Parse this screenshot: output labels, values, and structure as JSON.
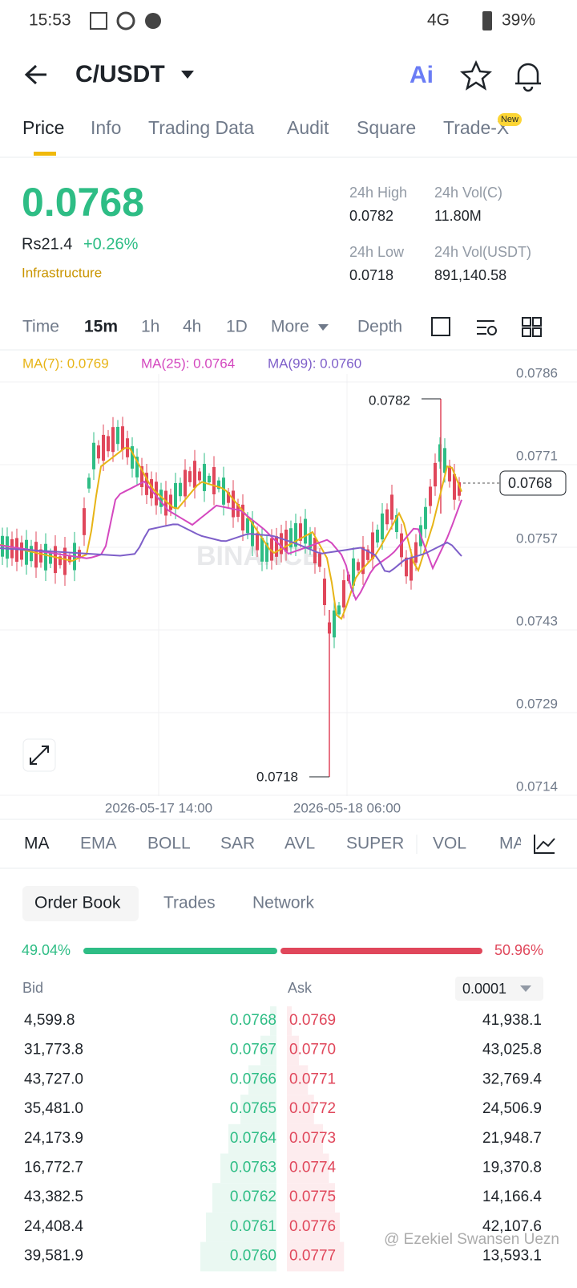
{
  "status": {
    "time": "15:53",
    "network": "4G",
    "battery": "39%"
  },
  "header": {
    "pair": "C/USDT"
  },
  "tabs": {
    "items": [
      "Price",
      "Info",
      "Trading Data",
      "Audit",
      "Square",
      "Trade-X"
    ],
    "badge": "New"
  },
  "price": {
    "last": "0.0768",
    "fiat": "Rs21.4",
    "change": "+0.26%",
    "tag": "Infrastructure"
  },
  "stats": [
    {
      "label": "24h High",
      "value": "0.0782"
    },
    {
      "label": "24h Vol(C)",
      "value": "11.80M"
    },
    {
      "label": "24h Low",
      "value": "0.0718"
    },
    {
      "label": "24h Vol(USDT)",
      "value": "891,140.58"
    }
  ],
  "intervals": [
    "Time",
    "15m",
    "1h",
    "4h",
    "1D",
    "More",
    "Depth"
  ],
  "chart": {
    "ma": [
      "MA(7): 0.0769",
      "MA(25): 0.0764",
      "MA(99): 0.0760"
    ],
    "yticks": [
      "0.0786",
      "0.0771",
      "0.0757",
      "0.0743",
      "0.0729",
      "0.0714"
    ],
    "high": "0.0782",
    "low": "0.0718",
    "current": "0.0768",
    "watermark": "BINANCE",
    "xlabels": [
      "2026-05-17 14:00",
      "2026-05-18 06:00"
    ]
  },
  "indicators": [
    "MA",
    "EMA",
    "BOLL",
    "SAR",
    "AVL",
    "SUPER",
    "VOL",
    "MAC"
  ],
  "orderbook": {
    "tabs": [
      "Order Book",
      "Trades",
      "Network"
    ],
    "bid_pct": "49.04%",
    "ask_pct": "50.96%",
    "bid_header": "Bid",
    "ask_header": "Ask",
    "precision": "0.0001",
    "rows": [
      [
        "4,599.8",
        "0.0768",
        "0.0769",
        "41,938.1"
      ],
      [
        "31,773.8",
        "0.0767",
        "0.0770",
        "43,025.8"
      ],
      [
        "43,727.0",
        "0.0766",
        "0.0771",
        "32,769.4"
      ],
      [
        "35,481.0",
        "0.0765",
        "0.0772",
        "24,506.9"
      ],
      [
        "24,173.9",
        "0.0764",
        "0.0773",
        "21,948.7"
      ],
      [
        "16,772.7",
        "0.0763",
        "0.0774",
        "19,370.8"
      ],
      [
        "43,382.5",
        "0.0762",
        "0.0775",
        "14,166.4"
      ],
      [
        "24,408.4",
        "0.0761",
        "0.0776",
        "42,107.6"
      ],
      [
        "39,581.9",
        "0.0760",
        "0.0777",
        "13,593.1"
      ]
    ]
  },
  "watermark": "@ Ezekiel Swansen Uezn"
}
